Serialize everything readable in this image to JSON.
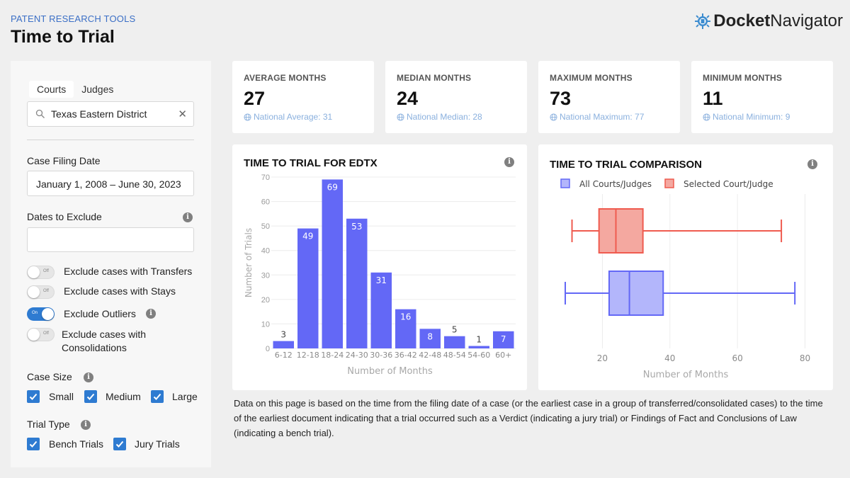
{
  "header": {
    "subtitle": "PATENT RESEARCH TOOLS",
    "title": "Time to Trial",
    "logo_part1": "Docket",
    "logo_part2": "Navigator"
  },
  "sidebar": {
    "tabs": [
      {
        "label": "Courts",
        "active": true
      },
      {
        "label": "Judges",
        "active": false
      }
    ],
    "search_value": "Texas Eastern District",
    "case_filing_label": "Case Filing Date",
    "case_filing_value": "January 1, 2008 – June 30, 2023",
    "dates_exclude_label": "Dates to Exclude",
    "toggles": [
      {
        "label": "Exclude cases with Transfers",
        "state": "Off"
      },
      {
        "label": "Exclude cases with Stays",
        "state": "Off"
      },
      {
        "label": "Exclude Outliers",
        "state": "On"
      },
      {
        "label": "Exclude cases with Consolidations",
        "state": "Off"
      }
    ],
    "case_size_label": "Case Size",
    "case_sizes": [
      "Small",
      "Medium",
      "Large"
    ],
    "trial_type_label": "Trial Type",
    "trial_types": [
      "Bench Trials",
      "Jury Trials"
    ],
    "checkbox_color": "#2e7bd1"
  },
  "stats": [
    {
      "label": "AVERAGE MONTHS",
      "value": "27",
      "national": "National Average: 31"
    },
    {
      "label": "MEDIAN MONTHS",
      "value": "24",
      "national": "National Median: 28"
    },
    {
      "label": "MAXIMUM MONTHS",
      "value": "73",
      "national": "National Maximum: 77"
    },
    {
      "label": "MINIMUM MONTHS",
      "value": "11",
      "national": "National Minimum: 9"
    }
  ],
  "chart_data": [
    {
      "type": "bar",
      "title": "TIME TO TRIAL FOR EDTX",
      "categories": [
        "6-12",
        "12-18",
        "18-24",
        "24-30",
        "30-36",
        "36-42",
        "42-48",
        "48-54",
        "54-60",
        "60+"
      ],
      "values": [
        3,
        49,
        69,
        53,
        31,
        16,
        8,
        5,
        1,
        7
      ],
      "xlabel": "Number of Months",
      "ylabel": "Number of Trials",
      "yticks": [
        0,
        10,
        20,
        30,
        40,
        50,
        60,
        70
      ],
      "ylim": [
        0,
        70
      ],
      "color": "#6368f6",
      "grid": true
    },
    {
      "type": "box",
      "title": "TIME TO TRIAL COMPARISON",
      "xlabel": "Number of Months",
      "xticks": [
        20,
        40,
        60,
        80
      ],
      "xlim": [
        9,
        82
      ],
      "legend": "top",
      "series": [
        {
          "name": "All Courts/Judges",
          "min": 9,
          "q1": 22,
          "median": 28,
          "q3": 38,
          "max": 77,
          "color": "#6368f6",
          "fill": "#b3b6fb"
        },
        {
          "name": "Selected Court/Judge",
          "min": 11,
          "q1": 19,
          "median": 24,
          "q3": 32,
          "max": 73,
          "color": "#ef5b4f",
          "fill": "#f4a8a0"
        }
      ]
    }
  ],
  "disclaimer": "Data on this page is based on the time from the filing date of a case (or the earliest case in a group of transferred/consolidated cases) to the time of the earliest document indicating that a trial occurred such as a Verdict (indicating a jury trial) or Findings of Fact and Conclusions of Law (indicating a bench trial)."
}
